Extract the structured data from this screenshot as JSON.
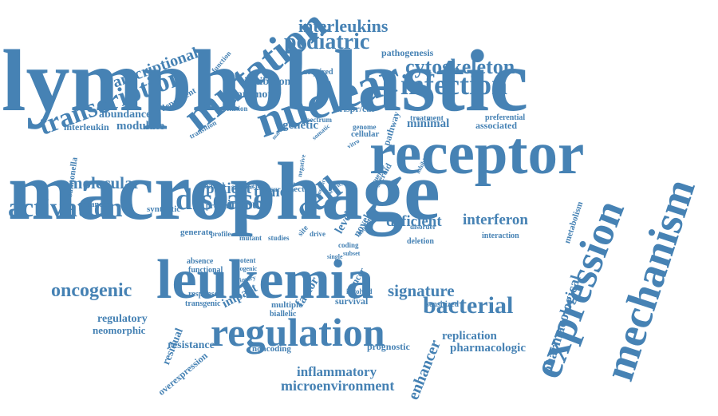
{
  "colors": {
    "word": "#4682b4",
    "background": "#ffffff"
  },
  "words": [
    {
      "id": "lymphoblastic",
      "text": "lymphoblastic"
    },
    {
      "id": "macrophage",
      "text": "macrophage"
    },
    {
      "id": "leukemia",
      "text": "leukemia"
    },
    {
      "id": "receptor",
      "text": "receptor"
    },
    {
      "id": "nuclear",
      "text": "nuclear"
    },
    {
      "id": "mutation",
      "text": "mutation"
    },
    {
      "id": "expression",
      "text": "expression"
    },
    {
      "id": "mechanism",
      "text": "mechanism"
    },
    {
      "id": "regulation",
      "text": "regulation"
    },
    {
      "id": "activation",
      "text": "activation"
    },
    {
      "id": "disease",
      "text": "disease"
    },
    {
      "id": "cell",
      "text": "cell"
    },
    {
      "id": "transcription",
      "text": "transcription"
    },
    {
      "id": "transcriptional",
      "text": "transcriptional"
    },
    {
      "id": "infection",
      "text": "infection"
    },
    {
      "id": "cytoskeleton",
      "text": "cytoskeleton"
    },
    {
      "id": "pediatric",
      "text": "pediatric"
    },
    {
      "id": "interleukins",
      "text": "interleukins"
    },
    {
      "id": "bacterial",
      "text": "bacterial"
    },
    {
      "id": "oncogenic",
      "text": "oncogenic"
    },
    {
      "id": "molecular",
      "text": "molecular"
    },
    {
      "id": "signature",
      "text": "signature"
    },
    {
      "id": "interferon",
      "text": "interferon"
    },
    {
      "id": "deficient",
      "text": "deficient"
    },
    {
      "id": "enhancer",
      "text": "enhancer"
    },
    {
      "id": "pharmacological",
      "text": "pharmacological"
    },
    {
      "id": "microenvironment",
      "text": "microenvironment"
    },
    {
      "id": "inflammatory",
      "text": "inflammatory"
    },
    {
      "id": "tumor",
      "text": "tumor"
    },
    {
      "id": "patient",
      "text": "patient"
    },
    {
      "id": "immune",
      "text": "immune"
    },
    {
      "id": "modulate",
      "text": "modulate"
    },
    {
      "id": "abundance",
      "text": "abundance"
    },
    {
      "id": "inhibition",
      "text": "inhibition"
    },
    {
      "id": "promoter",
      "text": "promoter"
    },
    {
      "id": "genetic",
      "text": "genetic"
    },
    {
      "id": "minimal",
      "text": "minimal"
    },
    {
      "id": "impact",
      "text": "impact"
    },
    {
      "id": "factor",
      "text": "factor"
    },
    {
      "id": "cancer",
      "text": "cancer"
    },
    {
      "id": "replication",
      "text": "replication"
    },
    {
      "id": "pharmacologic",
      "text": "pharmacologic"
    },
    {
      "id": "resistance",
      "text": "resistance"
    },
    {
      "id": "regulatory",
      "text": "regulatory"
    },
    {
      "id": "neomorphic",
      "text": "neomorphic"
    },
    {
      "id": "residual",
      "text": "residual"
    },
    {
      "id": "overexpression",
      "text": "overexpression"
    },
    {
      "id": "pathogenesis",
      "text": "pathogenesis"
    },
    {
      "id": "dependent",
      "text": "dependent"
    },
    {
      "id": "acquired",
      "text": "acquired"
    },
    {
      "id": "function",
      "text": "function"
    },
    {
      "id": "crispr",
      "text": "crispr/cas"
    },
    {
      "id": "associated",
      "text": "associated"
    },
    {
      "id": "preferential",
      "text": "preferential"
    },
    {
      "id": "treatment",
      "text": "treatment"
    },
    {
      "id": "pathway",
      "text": "pathway"
    },
    {
      "id": "interleukin",
      "text": "interleukin"
    },
    {
      "id": "salmonella",
      "text": "salmonella"
    },
    {
      "id": "enhanced",
      "text": "enhanced"
    },
    {
      "id": "synthetic",
      "text": "synthetic"
    },
    {
      "id": "protein",
      "text": "protein"
    },
    {
      "id": "generate",
      "text": "generate"
    },
    {
      "id": "level",
      "text": "level"
    },
    {
      "id": "novel",
      "text": "novel"
    },
    {
      "id": "absence",
      "text": "absence"
    },
    {
      "id": "functional",
      "text": "functional"
    },
    {
      "id": "potent",
      "text": "potent"
    },
    {
      "id": "response",
      "text": "response"
    },
    {
      "id": "transgenic",
      "text": "transgenic"
    },
    {
      "id": "biallelic",
      "text": "biallelic"
    },
    {
      "id": "multiple",
      "text": "multiple"
    },
    {
      "id": "survival",
      "text": "survival"
    },
    {
      "id": "sensitized",
      "text": "sensitized"
    },
    {
      "id": "noncoding",
      "text": "noncoding"
    },
    {
      "id": "prognostic",
      "text": "prognostic"
    },
    {
      "id": "metabolism",
      "text": "metabolism"
    },
    {
      "id": "deletion",
      "text": "deletion"
    },
    {
      "id": "interaction",
      "text": "interaction"
    },
    {
      "id": "disorder",
      "text": "disorder"
    },
    {
      "id": "mutant",
      "text": "mutant"
    },
    {
      "id": "studies",
      "text": "studies"
    },
    {
      "id": "profile",
      "text": "profile"
    },
    {
      "id": "drive",
      "text": "drive"
    },
    {
      "id": "site",
      "text": "site"
    },
    {
      "id": "involved",
      "text": "involved"
    },
    {
      "id": "steroid",
      "text": "steroid"
    },
    {
      "id": "spectrum",
      "text": "spectrum"
    },
    {
      "id": "somatic",
      "text": "somatic"
    },
    {
      "id": "genome",
      "text": "genome"
    },
    {
      "id": "cellular",
      "text": "cellular"
    },
    {
      "id": "conclusion",
      "text": "conclusion"
    },
    {
      "id": "transition",
      "text": "transition"
    },
    {
      "id": "effect",
      "text": "effect"
    },
    {
      "id": "occur",
      "text": "occur"
    },
    {
      "id": "limit",
      "text": "limit"
    },
    {
      "id": "treated",
      "text": "treated"
    },
    {
      "id": "sample",
      "text": "sample"
    },
    {
      "id": "target",
      "text": "target"
    },
    {
      "id": "insight",
      "text": "insight"
    },
    {
      "id": "activity",
      "text": "activity"
    },
    {
      "id": "coding",
      "text": "coding"
    },
    {
      "id": "model",
      "text": "model"
    },
    {
      "id": "subset",
      "text": "subset"
    },
    {
      "id": "single",
      "text": "single"
    },
    {
      "id": "bogenic",
      "text": "bogenic"
    },
    {
      "id": "primary",
      "text": "primary"
    },
    {
      "id": "sequence",
      "text": "sequence"
    },
    {
      "id": "inhibitor",
      "text": "inhibitor"
    },
    {
      "id": "negative",
      "text": "negative"
    },
    {
      "id": "marrow",
      "text": "marrow"
    },
    {
      "id": "vitro",
      "text": "vitro"
    }
  ]
}
